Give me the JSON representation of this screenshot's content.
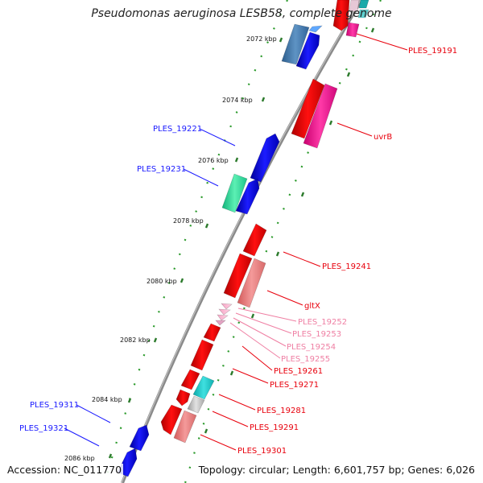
{
  "title": "Pseudomonas aeruginosa LESB58, complete genome",
  "accession": "Accession: NC_011770",
  "topology": "Topology: circular; Length: 6,601,757 bp; Genes: 6,026",
  "colors": {
    "backbone": "#7a7a7a",
    "tick": "#2b9a2b",
    "label_blue": "#1a1aff",
    "label_red": "#e8000c",
    "label_pink": "#ef7fa3"
  },
  "ticks": [
    {
      "label": "2072 kbp"
    },
    {
      "label": "2074 kbp"
    },
    {
      "label": "2076 kbp"
    },
    {
      "label": "2078 kbp"
    },
    {
      "label": "2080 kbp"
    },
    {
      "label": "2082 kbp"
    },
    {
      "label": "2084 kbp"
    },
    {
      "label": "2086 kbp"
    }
  ],
  "gene_labels": [
    {
      "text": "PLES_19191",
      "color": "red"
    },
    {
      "text": "uvrB",
      "color": "red"
    },
    {
      "text": "PLES_19221",
      "color": "blue"
    },
    {
      "text": "PLES_19231",
      "color": "blue"
    },
    {
      "text": "PLES_19241",
      "color": "red"
    },
    {
      "text": "gltX",
      "color": "red"
    },
    {
      "text": "PLES_19252",
      "color": "pink"
    },
    {
      "text": "PLES_19253",
      "color": "pink"
    },
    {
      "text": "PLES_19254",
      "color": "pink"
    },
    {
      "text": "PLES_19255",
      "color": "pink"
    },
    {
      "text": "PLES_19261",
      "color": "red"
    },
    {
      "text": "PLES_19271",
      "color": "red"
    },
    {
      "text": "PLES_19281",
      "color": "red"
    },
    {
      "text": "PLES_19291",
      "color": "red"
    },
    {
      "text": "PLES_19301",
      "color": "red"
    },
    {
      "text": "PLES_19311",
      "color": "blue"
    },
    {
      "text": "PLES_19321",
      "color": "blue"
    }
  ]
}
